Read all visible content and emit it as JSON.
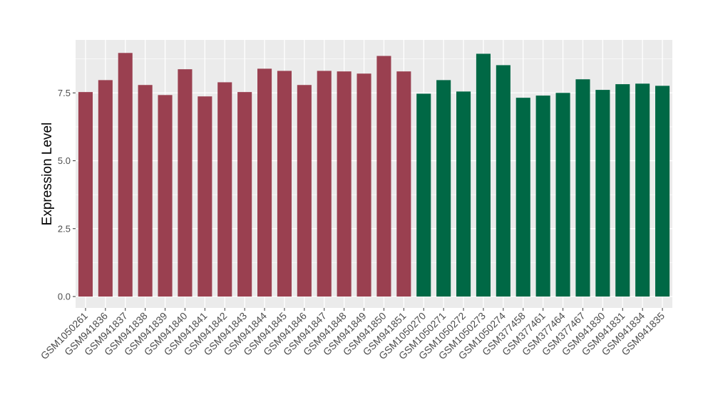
{
  "chart_data": {
    "type": "bar",
    "title": "",
    "xlabel": "",
    "ylabel": "Expression Level",
    "ylim": [
      -0.42,
      9.45
    ],
    "yticks": [
      0.0,
      2.5,
      5.0,
      7.5
    ],
    "ytick_labels": [
      "0.0",
      "2.5",
      "5.0",
      "7.5"
    ],
    "grid": true,
    "legend": "none",
    "colors": {
      "group1": "#9A4050",
      "group2": "#006845",
      "panel": "#EBEBEB",
      "grid": "#FFFFFF"
    },
    "categories": [
      "GSM1050261",
      "GSM941836",
      "GSM941837",
      "GSM941838",
      "GSM941839",
      "GSM941840",
      "GSM941841",
      "GSM941842",
      "GSM941843",
      "GSM941844",
      "GSM941845",
      "GSM941846",
      "GSM941847",
      "GSM941848",
      "GSM941849",
      "GSM941850",
      "GSM941851",
      "GSM1050270",
      "GSM1050271",
      "GSM1050272",
      "GSM1050273",
      "GSM1050274",
      "GSM377458",
      "GSM377461",
      "GSM377464",
      "GSM377467",
      "GSM941830",
      "GSM941831",
      "GSM941834",
      "GSM941835"
    ],
    "values": [
      7.53,
      7.97,
      8.97,
      7.79,
      7.42,
      8.37,
      7.37,
      7.89,
      7.53,
      8.39,
      8.31,
      7.79,
      8.31,
      8.29,
      8.21,
      8.86,
      8.29,
      7.47,
      7.97,
      7.55,
      8.94,
      8.52,
      7.32,
      7.4,
      7.5,
      8.0,
      7.61,
      7.82,
      7.84,
      7.76
    ],
    "groups": [
      1,
      1,
      1,
      1,
      1,
      1,
      1,
      1,
      1,
      1,
      1,
      1,
      1,
      1,
      1,
      1,
      1,
      2,
      2,
      2,
      2,
      2,
      2,
      2,
      2,
      2,
      2,
      2,
      2,
      2
    ]
  }
}
